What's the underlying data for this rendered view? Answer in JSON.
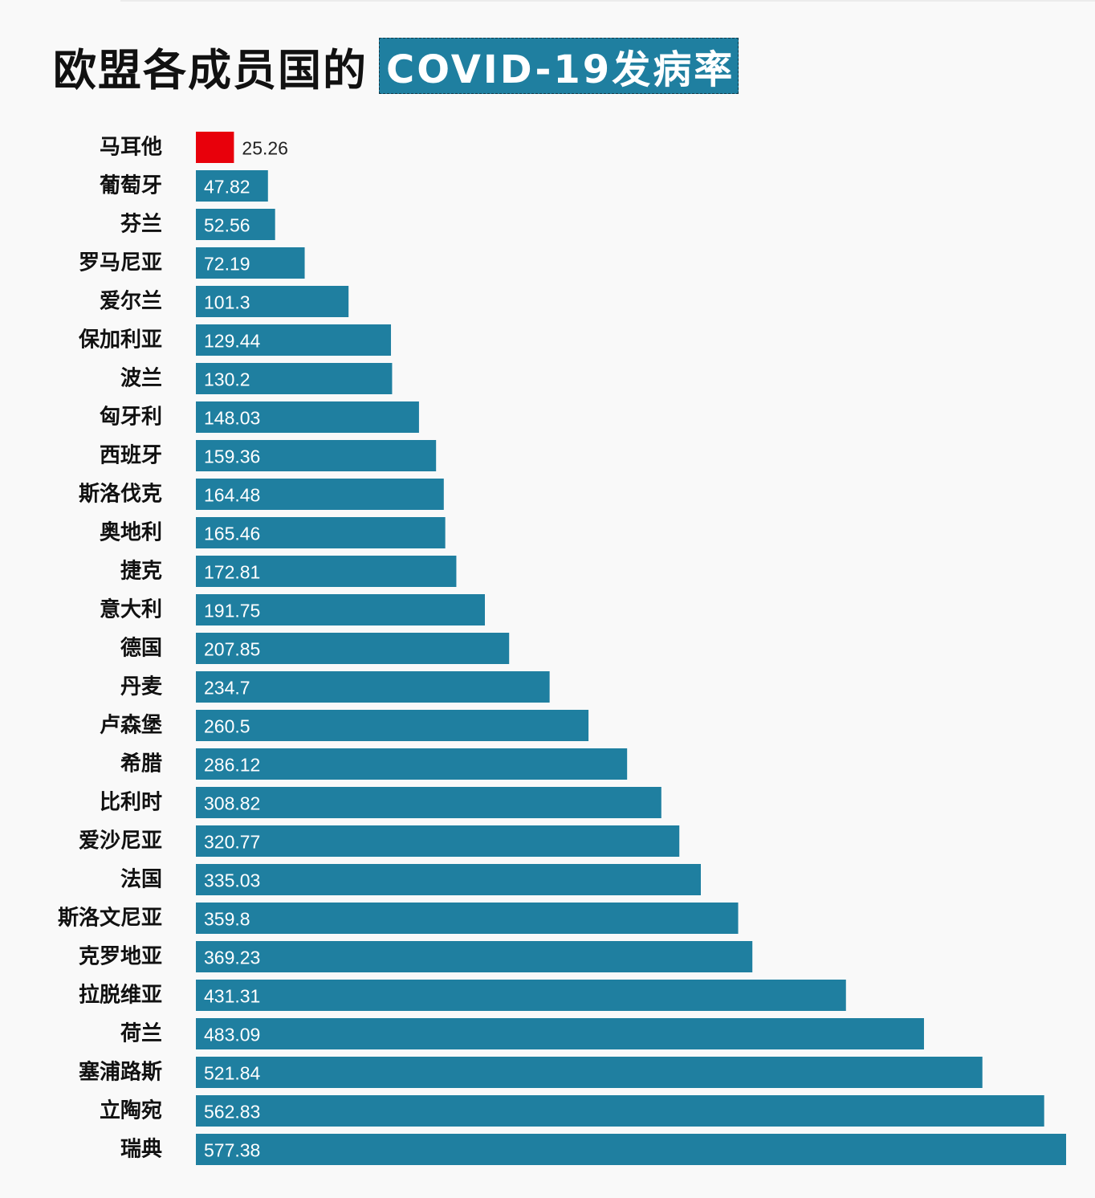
{
  "title": {
    "main": "欧盟各成员国的",
    "highlight": "COVID-19发病率"
  },
  "colors": {
    "bar": "#1f7fa0",
    "highlight_bar": "#e8000b",
    "label_inside": "#ffffff",
    "label_outside": "#222222"
  },
  "chart_data": {
    "type": "bar",
    "orientation": "horizontal",
    "categories": [
      "马耳他",
      "葡萄牙",
      "芬兰",
      "罗马尼亚",
      "爱尔兰",
      "保加利亚",
      "波兰",
      "匈牙利",
      "西班牙",
      "斯洛伐克",
      "奥地利",
      "捷克",
      "意大利",
      "德国",
      "丹麦",
      "卢森堡",
      "希腊",
      "比利时",
      "爱沙尼亚",
      "法国",
      "斯洛文尼亚",
      "克罗地亚",
      "拉脱维亚",
      "荷兰",
      "塞浦路斯",
      "立陶宛",
      "瑞典"
    ],
    "values": [
      25.26,
      47.82,
      52.56,
      72.19,
      101.3,
      129.44,
      130.2,
      148.03,
      159.36,
      164.48,
      165.46,
      172.81,
      191.75,
      207.85,
      234.7,
      260.5,
      286.12,
      308.82,
      320.77,
      335.03,
      359.8,
      369.23,
      431.31,
      483.09,
      521.84,
      562.83,
      577.38
    ],
    "value_labels": [
      "25.26",
      "47.82",
      "52.56",
      "72.19",
      "101.3",
      "129.44",
      "130.2",
      "148.03",
      "159.36",
      "164.48",
      "165.46",
      "172.81",
      "191.75",
      "207.85",
      "234.7",
      "260.5",
      "286.12",
      "308.82",
      "320.77",
      "335.03",
      "359.8",
      "369.23",
      "431.31",
      "483.09",
      "521.84",
      "562.83",
      "577.38"
    ],
    "highlight_index": 0,
    "xlim": [
      0,
      577.38
    ],
    "grid": false,
    "legend": "none"
  }
}
